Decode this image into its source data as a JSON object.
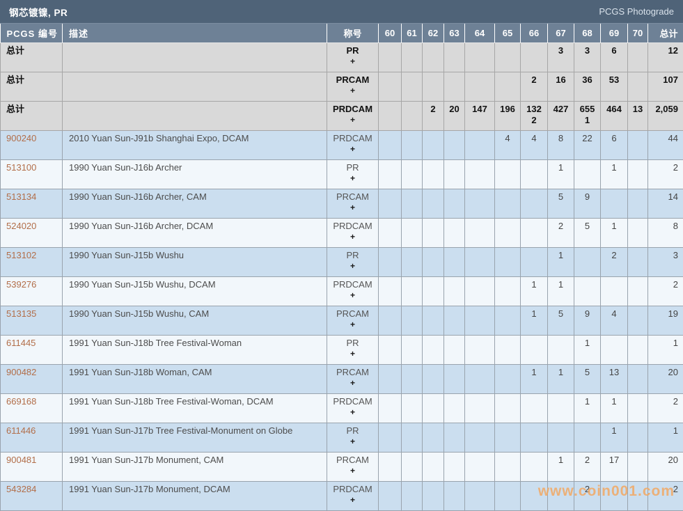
{
  "titlebar": {
    "title": "钢芯镀镍, PR",
    "brand": "PCGS Photograde"
  },
  "watermark": "www.coin001.com",
  "colors": {
    "titlebar_bg": "#4f6378",
    "header_bg": "#6e8196",
    "summary_bg": "#d9d9d9",
    "row_blue": "#cbdeef",
    "row_light": "#f2f7fb",
    "link": "#b26e49",
    "watermark": "#f2a964"
  },
  "table": {
    "plus_label": "+",
    "columns": [
      "PCGS 编号",
      "描述",
      "称号",
      "60",
      "61",
      "62",
      "63",
      "64",
      "65",
      "66",
      "67",
      "68",
      "69",
      "70",
      "总计"
    ],
    "rows": [
      {
        "type": "summary",
        "pcgs": "总计",
        "description": "",
        "designation": "PR",
        "values": [
          "",
          "",
          "",
          "",
          "",
          "",
          "",
          "3",
          "3",
          "6",
          ""
        ],
        "total": "12"
      },
      {
        "type": "summary",
        "pcgs": "总计",
        "description": "",
        "designation": "PRCAM",
        "values": [
          "",
          "",
          "",
          "",
          "",
          "",
          "2",
          "16",
          "36",
          "53",
          ""
        ],
        "total": "107"
      },
      {
        "type": "summary",
        "pcgs": "总计",
        "description": "",
        "designation": "PRDCAM",
        "values": [
          "",
          "",
          "2",
          "20",
          "147",
          "196",
          "132",
          "427",
          "655",
          "464",
          "13"
        ],
        "plus_values": [
          "",
          "",
          "",
          "",
          "",
          "",
          "2",
          "",
          "1",
          "",
          ""
        ],
        "total": "2,059"
      },
      {
        "type": "data",
        "pcgs": "900240",
        "description": "2010 Yuan Sun-J91b Shanghai Expo, DCAM",
        "designation": "PRDCAM",
        "values": [
          "",
          "",
          "",
          "",
          "",
          "4",
          "4",
          "8",
          "22",
          "6",
          ""
        ],
        "total": "44"
      },
      {
        "type": "data",
        "pcgs": "513100",
        "description": "1990 Yuan Sun-J16b Archer",
        "designation": "PR",
        "values": [
          "",
          "",
          "",
          "",
          "",
          "",
          "",
          "1",
          "",
          "1",
          ""
        ],
        "total": "2"
      },
      {
        "type": "data",
        "pcgs": "513134",
        "description": "1990 Yuan Sun-J16b Archer, CAM",
        "designation": "PRCAM",
        "values": [
          "",
          "",
          "",
          "",
          "",
          "",
          "",
          "5",
          "9",
          "",
          ""
        ],
        "total": "14"
      },
      {
        "type": "data",
        "pcgs": "524020",
        "description": "1990 Yuan Sun-J16b Archer, DCAM",
        "designation": "PRDCAM",
        "values": [
          "",
          "",
          "",
          "",
          "",
          "",
          "",
          "2",
          "5",
          "1",
          ""
        ],
        "total": "8"
      },
      {
        "type": "data",
        "pcgs": "513102",
        "description": "1990 Yuan Sun-J15b Wushu",
        "designation": "PR",
        "values": [
          "",
          "",
          "",
          "",
          "",
          "",
          "",
          "1",
          "",
          "2",
          ""
        ],
        "total": "3"
      },
      {
        "type": "data",
        "pcgs": "539276",
        "description": "1990 Yuan Sun-J15b Wushu, DCAM",
        "designation": "PRDCAM",
        "values": [
          "",
          "",
          "",
          "",
          "",
          "",
          "1",
          "1",
          "",
          "",
          ""
        ],
        "total": "2"
      },
      {
        "type": "data",
        "pcgs": "513135",
        "description": "1990 Yuan Sun-J15b Wushu, CAM",
        "designation": "PRCAM",
        "values": [
          "",
          "",
          "",
          "",
          "",
          "",
          "1",
          "5",
          "9",
          "4",
          ""
        ],
        "total": "19"
      },
      {
        "type": "data",
        "pcgs": "611445",
        "description": "1991 Yuan Sun-J18b Tree Festival-Woman",
        "designation": "PR",
        "values": [
          "",
          "",
          "",
          "",
          "",
          "",
          "",
          "",
          "1",
          "",
          ""
        ],
        "total": "1"
      },
      {
        "type": "data",
        "pcgs": "900482",
        "description": "1991 Yuan Sun-J18b Woman, CAM",
        "designation": "PRCAM",
        "values": [
          "",
          "",
          "",
          "",
          "",
          "",
          "1",
          "1",
          "5",
          "13",
          ""
        ],
        "total": "20"
      },
      {
        "type": "data",
        "pcgs": "669168",
        "description": "1991 Yuan Sun-J18b Tree Festival-Woman, DCAM",
        "designation": "PRDCAM",
        "values": [
          "",
          "",
          "",
          "",
          "",
          "",
          "",
          "",
          "1",
          "1",
          ""
        ],
        "total": "2"
      },
      {
        "type": "data",
        "pcgs": "611446",
        "description": "1991 Yuan Sun-J17b Tree Festival-Monument on Globe",
        "designation": "PR",
        "values": [
          "",
          "",
          "",
          "",
          "",
          "",
          "",
          "",
          "",
          "1",
          ""
        ],
        "total": "1"
      },
      {
        "type": "data",
        "pcgs": "900481",
        "description": "1991 Yuan Sun-J17b Monument, CAM",
        "designation": "PRCAM",
        "values": [
          "",
          "",
          "",
          "",
          "",
          "",
          "",
          "1",
          "2",
          "17",
          ""
        ],
        "total": "20"
      },
      {
        "type": "data",
        "pcgs": "543284",
        "description": "1991 Yuan Sun-J17b Monument, DCAM",
        "designation": "PRDCAM",
        "values": [
          "",
          "",
          "",
          "",
          "",
          "",
          "",
          "",
          "2",
          "",
          ""
        ],
        "total": "2"
      }
    ]
  }
}
